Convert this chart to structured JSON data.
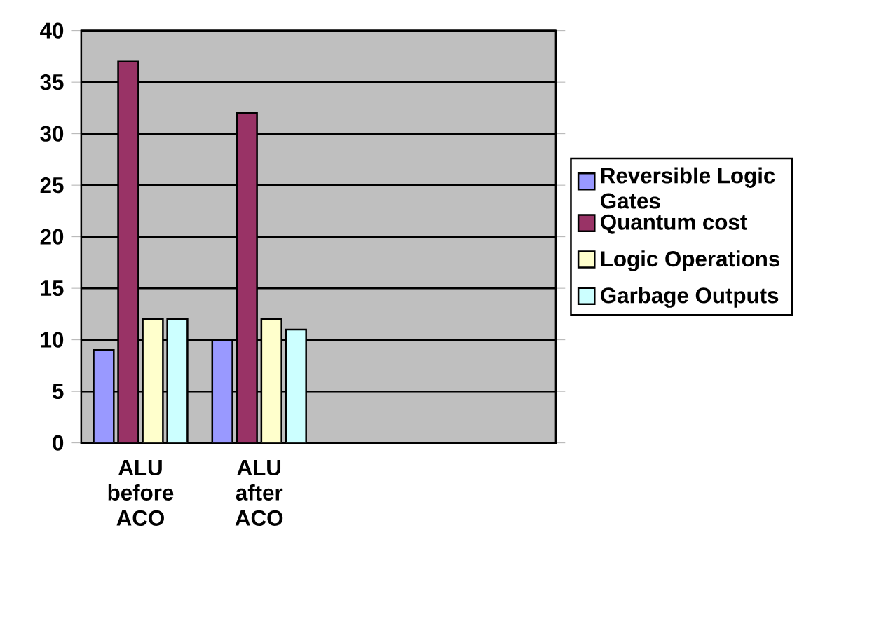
{
  "chart_data": {
    "type": "bar",
    "categories": [
      "ALU before ACO",
      "ALU after ACO",
      null,
      null
    ],
    "series": [
      {
        "name": "Reversible Logic Gates",
        "color": "#9999ff",
        "values": [
          9,
          10,
          null,
          null
        ]
      },
      {
        "name": "Quantum cost",
        "color": "#993366",
        "values": [
          37,
          32,
          null,
          null
        ]
      },
      {
        "name": "Logic Operations",
        "color": "#ffffcc",
        "values": [
          12,
          12,
          null,
          null
        ]
      },
      {
        "name": "Garbage Outputs",
        "color": "#ccffff",
        "values": [
          12,
          11,
          null,
          null
        ]
      }
    ],
    "ylim": [
      0,
      40
    ],
    "yticks": [
      0,
      5,
      10,
      15,
      20,
      25,
      30,
      35,
      40
    ],
    "grid": "y",
    "legend": "right"
  }
}
